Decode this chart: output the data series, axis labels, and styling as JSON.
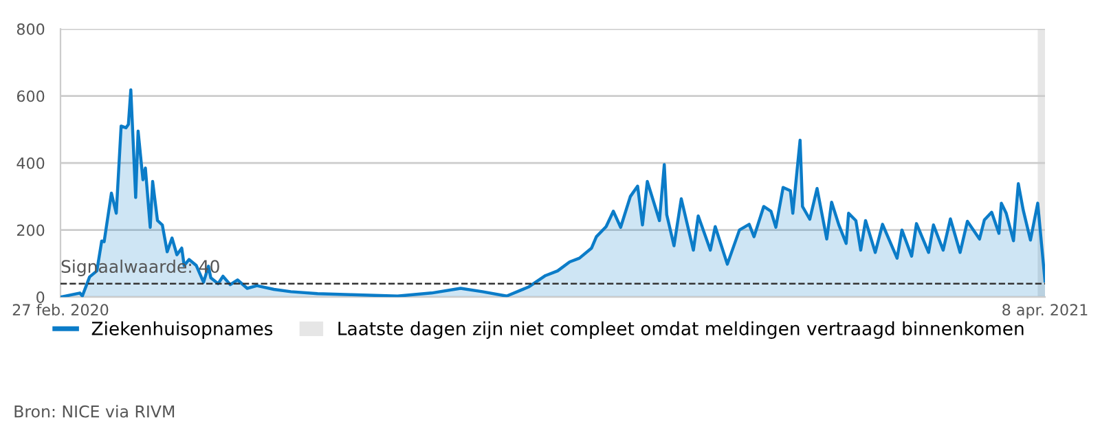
{
  "chart_data": {
    "type": "area",
    "xticks": [
      {
        "value": "2020-02-27",
        "label": "27 feb. 2020"
      },
      {
        "value": "2021-04-08",
        "label": "8 apr. 2021"
      }
    ],
    "xlim": [
      "2020-02-27",
      "2021-04-08"
    ],
    "ylim": [
      0,
      800
    ],
    "yticks": [
      0,
      200,
      400,
      600,
      800
    ],
    "grid": "y",
    "legend": "bottom left",
    "x": [
      "2020-02-27",
      "2020-03-06",
      "2020-03-07",
      "2020-03-10",
      "2020-03-13",
      "2020-03-15",
      "2020-03-16",
      "2020-03-19",
      "2020-03-21",
      "2020-03-23",
      "2020-03-25",
      "2020-03-26",
      "2020-03-27",
      "2020-03-29",
      "2020-03-30",
      "2020-04-01",
      "2020-04-02",
      "2020-04-04",
      "2020-04-05",
      "2020-04-07",
      "2020-04-09",
      "2020-04-11",
      "2020-04-13",
      "2020-04-15",
      "2020-04-17",
      "2020-04-18",
      "2020-04-20",
      "2020-04-23",
      "2020-04-26",
      "2020-04-28",
      "2020-04-29",
      "2020-05-02",
      "2020-05-04",
      "2020-05-07",
      "2020-05-10",
      "2020-05-14",
      "2020-05-18",
      "2020-05-25",
      "2020-06-01",
      "2020-06-12",
      "2020-06-26",
      "2020-07-15",
      "2020-07-29",
      "2020-08-10",
      "2020-08-19",
      "2020-08-29",
      "2020-09-07",
      "2020-09-14",
      "2020-09-19",
      "2020-09-24",
      "2020-09-28",
      "2020-10-03",
      "2020-10-05",
      "2020-10-09",
      "2020-10-12",
      "2020-10-15",
      "2020-10-19",
      "2020-10-22",
      "2020-10-24",
      "2020-10-26",
      "2020-10-31",
      "2020-11-02",
      "2020-11-03",
      "2020-11-06",
      "2020-11-09",
      "2020-11-14",
      "2020-11-16",
      "2020-11-21",
      "2020-11-23",
      "2020-11-28",
      "2020-12-03",
      "2020-12-07",
      "2020-12-09",
      "2020-12-13",
      "2020-12-16",
      "2020-12-18",
      "2020-12-21",
      "2020-12-24",
      "2020-12-25",
      "2020-12-28",
      "2020-12-29",
      "2021-01-01",
      "2021-01-04",
      "2021-01-08",
      "2021-01-10",
      "2021-01-13",
      "2021-01-16",
      "2021-01-17",
      "2021-01-20",
      "2021-01-22",
      "2021-01-24",
      "2021-01-28",
      "2021-01-31",
      "2021-02-06",
      "2021-02-08",
      "2021-02-12",
      "2021-02-14",
      "2021-02-19",
      "2021-02-21",
      "2021-02-25",
      "2021-02-28",
      "2021-03-04",
      "2021-03-07",
      "2021-03-12",
      "2021-03-14",
      "2021-03-17",
      "2021-03-20",
      "2021-03-21",
      "2021-03-23",
      "2021-03-26",
      "2021-03-28",
      "2021-03-30",
      "2021-04-02",
      "2021-04-05",
      "2021-04-08"
    ],
    "series": [
      {
        "name": "Ziekenhuisopnames",
        "color": "#0b7cc8",
        "values": [
          0,
          12,
          3,
          60,
          78,
          167,
          165,
          310,
          250,
          510,
          505,
          515,
          618,
          297,
          495,
          350,
          385,
          208,
          345,
          228,
          215,
          135,
          176,
          126,
          146,
          94,
          112,
          94,
          44,
          92,
          57,
          40,
          62,
          37,
          51,
          26,
          34,
          23,
          16,
          10,
          7,
          3,
          12,
          26,
          16,
          3,
          30,
          64,
          78,
          105,
          116,
          146,
          180,
          210,
          256,
          208,
          300,
          331,
          215,
          345,
          228,
          395,
          246,
          153,
          293,
          140,
          242,
          140,
          210,
          98,
          200,
          217,
          180,
          270,
          256,
          208,
          327,
          317,
          250,
          468,
          270,
          232,
          324,
          173,
          283,
          215,
          160,
          250,
          228,
          140,
          228,
          133,
          217,
          116,
          200,
          122,
          219,
          133,
          215,
          140,
          233,
          133,
          226,
          173,
          230,
          253,
          190,
          280,
          250,
          168,
          338,
          260,
          170,
          280,
          48
        ]
      }
    ],
    "ref_lines": [
      {
        "axis": "y",
        "value": 40,
        "label": "Signaalwaarde: 40",
        "line_style": "dashed",
        "color": "#333333"
      }
    ],
    "bands": [
      {
        "axis": "x",
        "from": "2021-04-05",
        "to": "2021-04-08",
        "label": "Laatste dagen zijn niet compleet omdat meldingen vertraagd binnenkomen",
        "color": "#e6e6e6"
      }
    ],
    "annotations": [
      "Bron: NICE via RIVM"
    ]
  }
}
